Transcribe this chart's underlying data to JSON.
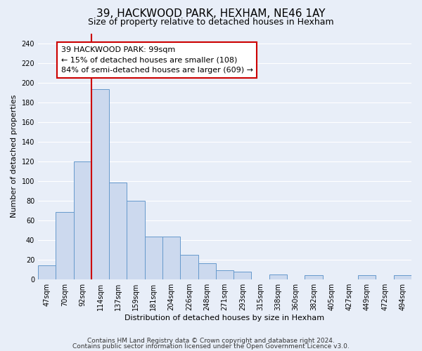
{
  "title": "39, HACKWOOD PARK, HEXHAM, NE46 1AY",
  "subtitle": "Size of property relative to detached houses in Hexham",
  "xlabel": "Distribution of detached houses by size in Hexham",
  "ylabel": "Number of detached properties",
  "bar_labels": [
    "47sqm",
    "70sqm",
    "92sqm",
    "114sqm",
    "137sqm",
    "159sqm",
    "181sqm",
    "204sqm",
    "226sqm",
    "248sqm",
    "271sqm",
    "293sqm",
    "315sqm",
    "338sqm",
    "360sqm",
    "382sqm",
    "405sqm",
    "427sqm",
    "449sqm",
    "472sqm",
    "494sqm"
  ],
  "bar_values": [
    14,
    68,
    120,
    193,
    98,
    80,
    43,
    43,
    25,
    16,
    9,
    8,
    0,
    5,
    0,
    4,
    0,
    0,
    4,
    0,
    4
  ],
  "bar_color": "#ccd9ee",
  "bar_edge_color": "#6699cc",
  "vline_x": 2.5,
  "vline_color": "#cc0000",
  "annotation_title": "39 HACKWOOD PARK: 99sqm",
  "annotation_line1": "← 15% of detached houses are smaller (108)",
  "annotation_line2": "84% of semi-detached houses are larger (609) →",
  "annotation_box_color": "#ffffff",
  "annotation_box_edge": "#cc0000",
  "ylim": [
    0,
    250
  ],
  "yticks": [
    0,
    20,
    40,
    60,
    80,
    100,
    120,
    140,
    160,
    180,
    200,
    220,
    240
  ],
  "footer1": "Contains HM Land Registry data © Crown copyright and database right 2024.",
  "footer2": "Contains public sector information licensed under the Open Government Licence v3.0.",
  "background_color": "#e8eef8",
  "plot_bg_color": "#e8eef8",
  "grid_color": "#ffffff",
  "title_fontsize": 11,
  "subtitle_fontsize": 9,
  "axis_label_fontsize": 8,
  "tick_fontsize": 7,
  "annotation_fontsize": 8,
  "footer_fontsize": 6.5
}
